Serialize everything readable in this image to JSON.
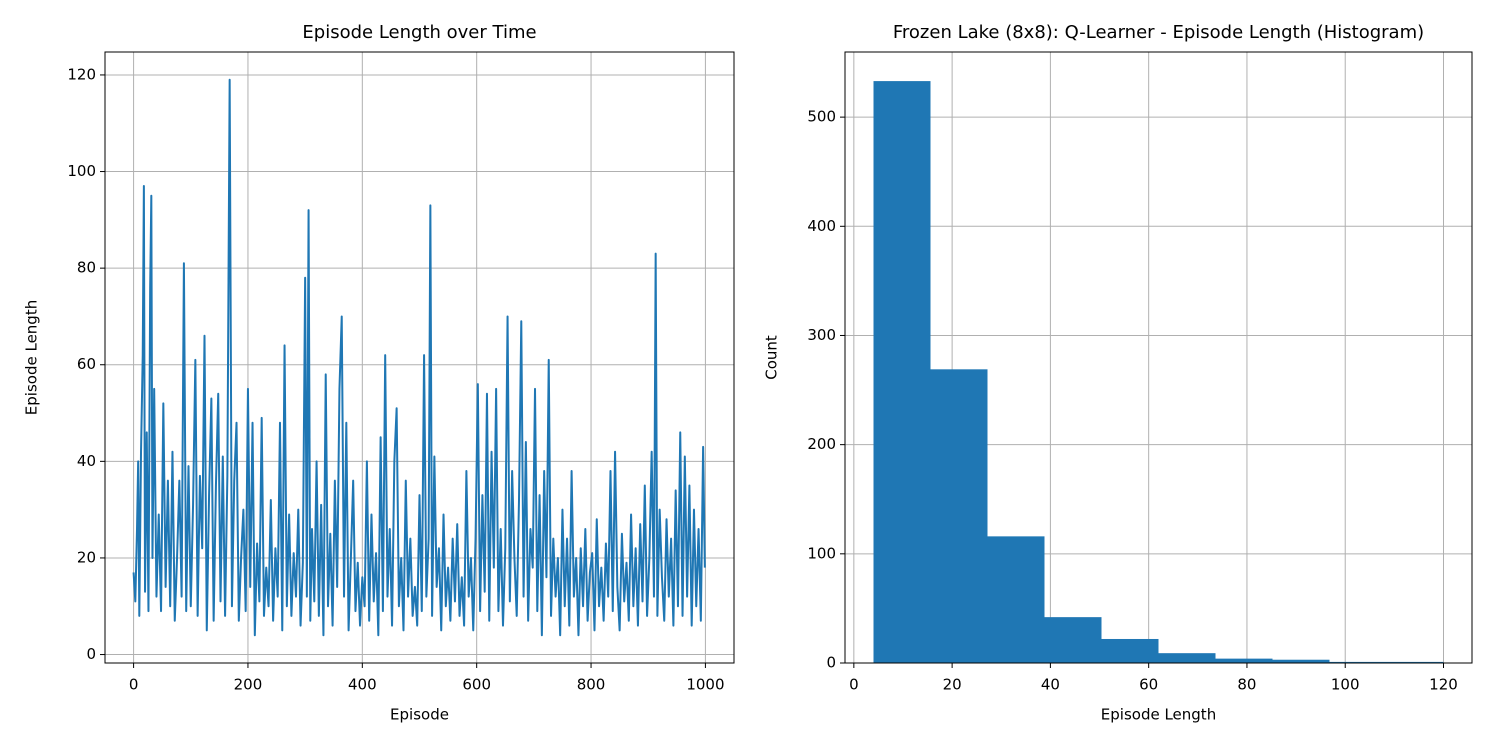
{
  "chart_data": [
    {
      "type": "line",
      "title": "Episode Length over Time",
      "x_label": "Episode",
      "y_label": "Episode Length",
      "x": [
        0,
        3,
        6,
        8,
        10,
        13,
        16,
        18,
        20,
        23,
        26,
        29,
        31,
        33,
        36,
        40,
        44,
        48,
        52,
        56,
        60,
        64,
        68,
        72,
        76,
        80,
        84,
        88,
        92,
        96,
        100,
        104,
        108,
        112,
        116,
        120,
        124,
        128,
        132,
        136,
        140,
        144,
        148,
        152,
        156,
        160,
        164,
        168,
        172,
        176,
        180,
        184,
        188,
        192,
        196,
        200,
        204,
        208,
        212,
        216,
        220,
        224,
        228,
        232,
        236,
        240,
        244,
        248,
        252,
        256,
        260,
        264,
        268,
        272,
        276,
        280,
        284,
        288,
        292,
        296,
        300,
        303,
        306,
        309,
        312,
        316,
        320,
        324,
        328,
        332,
        336,
        340,
        344,
        348,
        352,
        356,
        360,
        364,
        368,
        372,
        376,
        380,
        384,
        388,
        392,
        396,
        400,
        404,
        408,
        412,
        416,
        420,
        424,
        428,
        432,
        436,
        440,
        444,
        448,
        452,
        456,
        460,
        464,
        468,
        472,
        476,
        480,
        484,
        488,
        492,
        496,
        500,
        504,
        508,
        512,
        516,
        519,
        522,
        526,
        530,
        534,
        538,
        542,
        546,
        550,
        554,
        558,
        562,
        566,
        570,
        574,
        578,
        582,
        586,
        590,
        594,
        598,
        602,
        606,
        610,
        614,
        618,
        622,
        626,
        630,
        634,
        638,
        642,
        646,
        650,
        654,
        658,
        662,
        666,
        670,
        674,
        678,
        682,
        686,
        690,
        694,
        698,
        702,
        706,
        710,
        714,
        718,
        722,
        726,
        730,
        734,
        738,
        742,
        746,
        750,
        754,
        758,
        762,
        766,
        770,
        774,
        778,
        782,
        786,
        790,
        794,
        798,
        802,
        806,
        810,
        814,
        818,
        822,
        826,
        830,
        834,
        838,
        842,
        846,
        850,
        854,
        858,
        862,
        866,
        870,
        874,
        878,
        882,
        886,
        890,
        894,
        898,
        902,
        906,
        910,
        913,
        916,
        920,
        924,
        928,
        932,
        936,
        940,
        944,
        948,
        952,
        956,
        960,
        964,
        968,
        972,
        976,
        980,
        984,
        988,
        992,
        996,
        999
      ],
      "series": [
        {
          "color": "#1f77b4",
          "values": [
            17,
            11,
            26,
            40,
            8,
            42,
            62,
            97,
            13,
            46,
            9,
            76,
            95,
            20,
            55,
            12,
            29,
            9,
            52,
            14,
            36,
            10,
            42,
            7,
            20,
            36,
            12,
            81,
            9,
            39,
            10,
            31,
            61,
            8,
            37,
            22,
            66,
            5,
            33,
            53,
            7,
            35,
            54,
            11,
            41,
            8,
            37,
            119,
            10,
            36,
            48,
            7,
            20,
            30,
            9,
            55,
            14,
            48,
            4,
            23,
            11,
            49,
            8,
            18,
            10,
            32,
            7,
            22,
            12,
            48,
            5,
            64,
            10,
            29,
            8,
            21,
            12,
            30,
            6,
            19,
            78,
            12,
            92,
            7,
            26,
            11,
            40,
            8,
            31,
            4,
            58,
            10,
            25,
            6,
            36,
            14,
            55,
            70,
            12,
            48,
            5,
            20,
            36,
            9,
            19,
            6,
            16,
            10,
            40,
            7,
            29,
            11,
            21,
            4,
            45,
            9,
            62,
            12,
            26,
            6,
            40,
            51,
            10,
            20,
            5,
            36,
            12,
            24,
            8,
            14,
            6,
            33,
            9,
            62,
            12,
            24,
            93,
            8,
            41,
            14,
            22,
            5,
            29,
            10,
            18,
            7,
            24,
            11,
            27,
            8,
            16,
            6,
            38,
            12,
            20,
            5,
            24,
            56,
            9,
            33,
            13,
            54,
            7,
            42,
            18,
            55,
            9,
            26,
            6,
            22,
            70,
            11,
            38,
            20,
            8,
            32,
            69,
            12,
            44,
            7,
            26,
            18,
            55,
            9,
            33,
            4,
            38,
            16,
            61,
            8,
            24,
            12,
            20,
            4,
            30,
            10,
            24,
            6,
            38,
            12,
            20,
            4,
            22,
            10,
            26,
            7,
            17,
            21,
            5,
            28,
            10,
            18,
            7,
            23,
            12,
            38,
            9,
            42,
            14,
            5,
            25,
            11,
            19,
            7,
            29,
            10,
            22,
            6,
            27,
            11,
            35,
            8,
            20,
            42,
            12,
            83,
            8,
            30,
            16,
            7,
            28,
            12,
            24,
            6,
            34,
            10,
            46,
            8,
            41,
            12,
            35,
            6,
            30,
            10,
            26,
            7,
            43,
            18
          ]
        }
      ],
      "xlim": [
        -50,
        1050
      ],
      "ylim": [
        -1.75,
        124.75
      ],
      "xticks": [
        0,
        200,
        400,
        600,
        800,
        1000
      ],
      "yticks": [
        0,
        20,
        40,
        60,
        80,
        100,
        120
      ],
      "grid": true
    },
    {
      "type": "histogram",
      "title": "Frozen Lake (8x8): Q-Learner - Episode Length (Histogram)",
      "x_label": "Episode Length",
      "y_label": "Count",
      "bins": [
        4,
        15.6,
        27.2,
        38.8,
        50.4,
        62,
        73.6,
        85.2,
        96.8,
        108.4,
        120
      ],
      "values": [
        533,
        269,
        116,
        42,
        22,
        9,
        4,
        3,
        1,
        1
      ],
      "color": "#1f77b4",
      "xlim": [
        -1.8,
        125.8
      ],
      "ylim": [
        0,
        559.65
      ],
      "xticks": [
        0,
        20,
        40,
        60,
        80,
        100,
        120
      ],
      "yticks": [
        0,
        100,
        200,
        300,
        400,
        500
      ],
      "grid": true
    }
  ]
}
